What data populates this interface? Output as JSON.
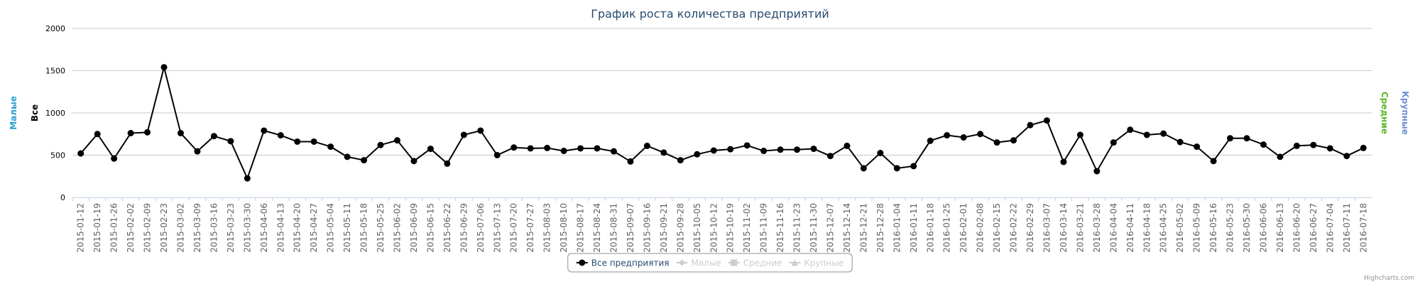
{
  "chart_data": {
    "type": "line",
    "title": "График роста количества предприятий",
    "credits": "Highcharts.com",
    "axis_titles": [
      {
        "text": "Малые",
        "color": "#2b9fd8",
        "side": "left"
      },
      {
        "text": "Все",
        "color": "#000000",
        "side": "left"
      },
      {
        "text": "Средние",
        "color": "#5cb82a",
        "side": "right"
      },
      {
        "text": "Крупные",
        "color": "#6f8fd0",
        "side": "right"
      }
    ],
    "categories": [
      "2015-01-12",
      "2015-01-19",
      "2015-01-26",
      "2015-02-02",
      "2015-02-09",
      "2015-02-23",
      "2015-03-02",
      "2015-03-09",
      "2015-03-16",
      "2015-03-23",
      "2015-03-30",
      "2015-04-06",
      "2015-04-13",
      "2015-04-20",
      "2015-04-27",
      "2015-05-04",
      "2015-05-11",
      "2015-05-18",
      "2015-05-25",
      "2015-06-02",
      "2015-06-09",
      "2015-06-15",
      "2015-06-22",
      "2015-06-29",
      "2015-07-06",
      "2015-07-13",
      "2015-07-20",
      "2015-07-27",
      "2015-08-03",
      "2015-08-10",
      "2015-08-17",
      "2015-08-24",
      "2015-08-31",
      "2015-09-07",
      "2015-09-16",
      "2015-09-21",
      "2015-09-28",
      "2015-10-05",
      "2015-10-12",
      "2015-10-19",
      "2015-11-02",
      "2015-11-09",
      "2015-11-16",
      "2015-11-23",
      "2015-11-30",
      "2015-12-07",
      "2015-12-14",
      "2015-12-21",
      "2015-12-28",
      "2016-01-04",
      "2016-01-11",
      "2016-01-18",
      "2016-01-25",
      "2016-02-01",
      "2016-02-08",
      "2016-02-15",
      "2016-02-22",
      "2016-02-29",
      "2016-03-07",
      "2016-03-14",
      "2016-03-21",
      "2016-03-28",
      "2016-04-04",
      "2016-04-11",
      "2016-04-18",
      "2016-04-25",
      "2016-05-02",
      "2016-05-09",
      "2016-05-16",
      "2016-05-23",
      "2016-05-30",
      "2016-06-06",
      "2016-06-13",
      "2016-06-20",
      "2016-06-27",
      "2016-07-04",
      "2016-07-11",
      "2016-07-18"
    ],
    "series": [
      {
        "name": "Все предприятия",
        "color": "#000000",
        "symbol": "circle",
        "visible": true,
        "values": [
          520,
          750,
          460,
          760,
          770,
          1540,
          760,
          545,
          725,
          665,
          225,
          790,
          735,
          660,
          660,
          600,
          480,
          440,
          620,
          675,
          430,
          575,
          400,
          740,
          790,
          500,
          590,
          580,
          585,
          550,
          580,
          580,
          545,
          425,
          610,
          530,
          440,
          510,
          555,
          570,
          615,
          550,
          565,
          565,
          575,
          490,
          610,
          345,
          525,
          345,
          370,
          670,
          735,
          710,
          750,
          650,
          675,
          855,
          910,
          420,
          740,
          310,
          650,
          800,
          740,
          755,
          655,
          600,
          430,
          700,
          700,
          625,
          480,
          610,
          620,
          580,
          490,
          585
        ]
      },
      {
        "name": "Малые",
        "color": "#cccccc",
        "symbol": "diamond",
        "visible": false
      },
      {
        "name": "Средние",
        "color": "#cccccc",
        "symbol": "square",
        "visible": false
      },
      {
        "name": "Крупные",
        "color": "#cccccc",
        "symbol": "triangle",
        "visible": false
      }
    ],
    "ylim": [
      0,
      2000
    ],
    "yticks": [
      0,
      500,
      1000,
      1500,
      2000
    ],
    "grid": true
  }
}
